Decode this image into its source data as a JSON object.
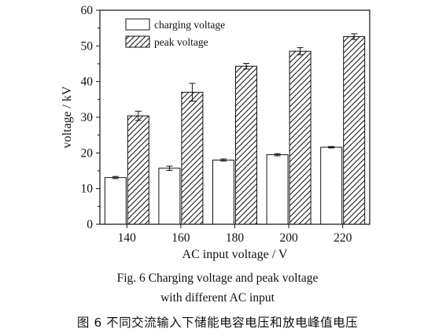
{
  "chart_data": {
    "type": "bar",
    "title": "",
    "xlabel": "AC input voltage / V",
    "ylabel": "voltage / kV",
    "ylim": [
      0,
      60
    ],
    "yticks": [
      0,
      10,
      20,
      30,
      40,
      50,
      60
    ],
    "categories": [
      "140",
      "160",
      "180",
      "200",
      "220"
    ],
    "legend_position": "top-left",
    "series": [
      {
        "name": "charging voltage",
        "pattern": "solid-white",
        "values": [
          13.1,
          15.7,
          18.0,
          19.5,
          21.6
        ],
        "errors": [
          0.3,
          0.6,
          0.3,
          0.3,
          0.2
        ]
      },
      {
        "name": "peak voltage",
        "pattern": "diagonal-hatch",
        "values": [
          30.4,
          37.0,
          44.3,
          48.5,
          52.6
        ],
        "errors": [
          1.3,
          2.5,
          0.8,
          1.0,
          0.8
        ]
      }
    ]
  },
  "caption": {
    "line1": "Fig. 6    Charging voltage and peak voltage",
    "line2": "with different AC input",
    "line3": "图 6   不同交流输入下储能电容电压和放电峰值电压"
  },
  "colors": {
    "axis": "#111111",
    "bar_fill": "#ffffff",
    "hatch": "#111111"
  }
}
